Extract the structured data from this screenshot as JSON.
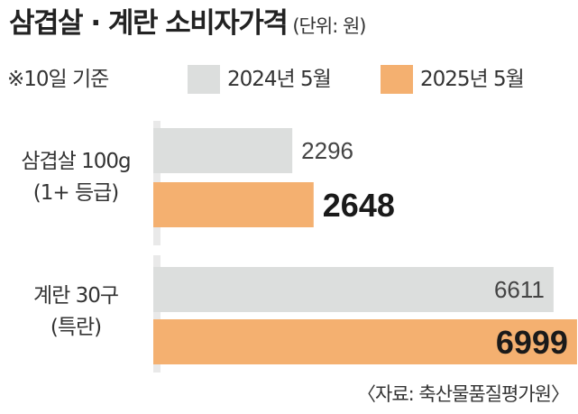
{
  "title": "삼겹살 · 계란 소비자가격",
  "unit": "(단위: 원)",
  "basis": "※10일 기준",
  "source": "〈자료: 축산물품질평가원〉",
  "colors": {
    "series_2024": "#dcdedd",
    "series_2025": "#f4b070",
    "axis_background": "#e9e9e9"
  },
  "chart_data": {
    "type": "bar",
    "orientation": "horizontal",
    "categories": [
      [
        "삼겹살 100g",
        "(1+ 등급)"
      ],
      [
        "계란 30구",
        "(특란)"
      ]
    ],
    "series": [
      {
        "name": "2024년 5월",
        "values": [
          2296,
          6611
        ],
        "color": "#dcdedd"
      },
      {
        "name": "2025년 5월",
        "values": [
          2648,
          6999
        ],
        "color": "#f4b070"
      }
    ],
    "value_labels": [
      [
        "2296",
        "6611"
      ],
      [
        "2648",
        "6999"
      ]
    ],
    "xlim": [
      0,
      7000
    ],
    "grid": false,
    "legend_position": "top"
  }
}
